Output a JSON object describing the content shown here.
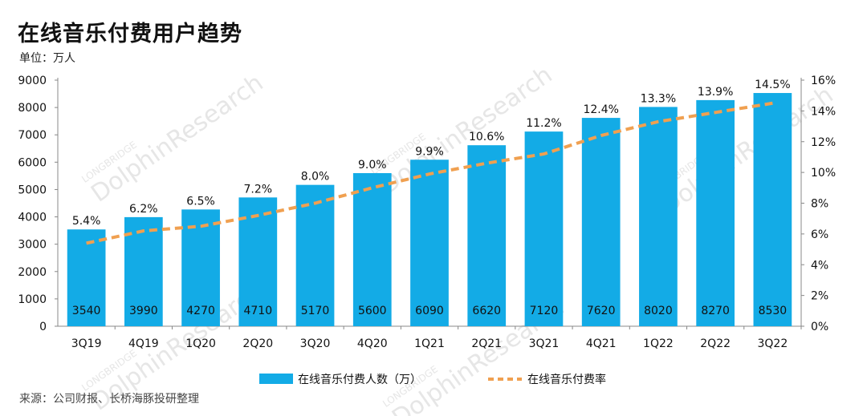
{
  "title": "在线音乐付费用户趋势",
  "unit_label": "单位：万人",
  "source": "来源：公司财报、长桥海豚投研整理",
  "watermark": {
    "brand_small": "LONGBRIDGE",
    "brand_large": "DolphinResearch"
  },
  "colors": {
    "bar": "#13ABE6",
    "line": "#F0A050",
    "axis": "#888888",
    "watermark": "#E6E6E6"
  },
  "chart_data": {
    "type": "bar",
    "categories": [
      "3Q19",
      "4Q19",
      "1Q20",
      "2Q20",
      "3Q20",
      "4Q20",
      "1Q21",
      "2Q21",
      "3Q21",
      "4Q21",
      "1Q22",
      "2Q22",
      "3Q22"
    ],
    "series": [
      {
        "name": "在线音乐付费人数（万）",
        "type": "bar",
        "axis": "left",
        "values": [
          3540,
          3990,
          4270,
          4710,
          5170,
          5600,
          6090,
          6620,
          7120,
          7620,
          8020,
          8270,
          8530
        ]
      },
      {
        "name": "在线音乐付费率",
        "type": "line",
        "style": "dashed",
        "axis": "right",
        "values": [
          5.4,
          6.2,
          6.5,
          7.2,
          8.0,
          9.0,
          9.9,
          10.6,
          11.2,
          12.4,
          13.3,
          13.9,
          14.5
        ]
      }
    ],
    "bar_labels": [
      "3540",
      "3990",
      "4270",
      "4710",
      "5170",
      "5600",
      "6090",
      "6620",
      "7120",
      "7620",
      "8020",
      "8270",
      "8530"
    ],
    "line_labels": [
      "5.4%",
      "6.2%",
      "6.5%",
      "7.2%",
      "8.0%",
      "9.0%",
      "9.9%",
      "10.6%",
      "11.2%",
      "12.4%",
      "13.3%",
      "13.9%",
      "14.5%"
    ],
    "y_left": {
      "range": [
        0,
        9000
      ],
      "ticks": [
        "0",
        "1000",
        "2000",
        "3000",
        "4000",
        "5000",
        "6000",
        "7000",
        "8000",
        "9000"
      ]
    },
    "y_right": {
      "range": [
        0,
        16
      ],
      "ticks": [
        "0%",
        "2%",
        "4%",
        "6%",
        "8%",
        "10%",
        "12%",
        "14%",
        "16%"
      ]
    },
    "grid": false,
    "legend_position": "bottom"
  }
}
